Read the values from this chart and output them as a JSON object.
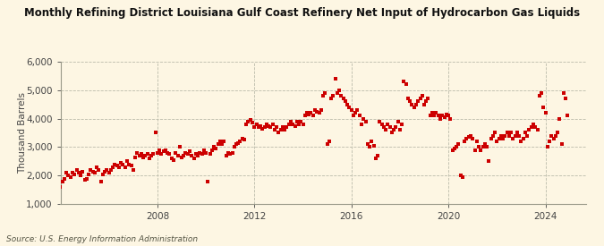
{
  "title": "Monthly Refining District Louisiana Gulf Coast Refinery Net Input of Hydrocarbon Gas Liquids",
  "ylabel": "Thousand Barrels",
  "source": "Source: U.S. Energy Information Administration",
  "background_color": "#fdf6e3",
  "plot_bg_color": "#fdf6e3",
  "dot_color": "#cc0000",
  "dot_size": 9,
  "ylim": [
    1000,
    6000
  ],
  "yticks": [
    1000,
    2000,
    3000,
    4000,
    5000,
    6000
  ],
  "xticks_years": [
    2008,
    2012,
    2016,
    2020,
    2024
  ],
  "data": {
    "2004-01": 1600,
    "2004-02": 1800,
    "2004-03": 1900,
    "2004-04": 2100,
    "2004-05": 2000,
    "2004-06": 1950,
    "2004-07": 2100,
    "2004-08": 2050,
    "2004-09": 2200,
    "2004-10": 2100,
    "2004-11": 2000,
    "2004-12": 2150,
    "2005-01": 1850,
    "2005-02": 1900,
    "2005-03": 2050,
    "2005-04": 2200,
    "2005-05": 2150,
    "2005-06": 2100,
    "2005-07": 2300,
    "2005-08": 2200,
    "2005-09": 1800,
    "2005-10": 2050,
    "2005-11": 2150,
    "2005-12": 2200,
    "2006-01": 2100,
    "2006-02": 2200,
    "2006-03": 2300,
    "2006-04": 2400,
    "2006-05": 2350,
    "2006-06": 2300,
    "2006-07": 2450,
    "2006-08": 2400,
    "2006-09": 2300,
    "2006-10": 2500,
    "2006-11": 2400,
    "2006-12": 2350,
    "2007-01": 2200,
    "2007-02": 2650,
    "2007-03": 2800,
    "2007-04": 2700,
    "2007-05": 2750,
    "2007-06": 2650,
    "2007-07": 2700,
    "2007-08": 2750,
    "2007-09": 2600,
    "2007-10": 2700,
    "2007-11": 2750,
    "2007-12": 3500,
    "2008-01": 2800,
    "2008-02": 2900,
    "2008-03": 2750,
    "2008-04": 2850,
    "2008-05": 2900,
    "2008-06": 2800,
    "2008-07": 2750,
    "2008-08": 2600,
    "2008-09": 2550,
    "2008-10": 2800,
    "2008-11": 2700,
    "2008-12": 3000,
    "2009-01": 2650,
    "2009-02": 2700,
    "2009-03": 2800,
    "2009-04": 2750,
    "2009-05": 2850,
    "2009-06": 2700,
    "2009-07": 2600,
    "2009-08": 2750,
    "2009-09": 2700,
    "2009-10": 2800,
    "2009-11": 2750,
    "2009-12": 2900,
    "2010-01": 2800,
    "2010-02": 1800,
    "2010-03": 2750,
    "2010-04": 2900,
    "2010-05": 3000,
    "2010-06": 2950,
    "2010-07": 3100,
    "2010-08": 3200,
    "2010-09": 3100,
    "2010-10": 3200,
    "2010-11": 2700,
    "2010-12": 2800,
    "2011-01": 2750,
    "2011-02": 2800,
    "2011-03": 3000,
    "2011-04": 3100,
    "2011-05": 3150,
    "2011-06": 3200,
    "2011-07": 3300,
    "2011-08": 3250,
    "2011-09": 3800,
    "2011-10": 3900,
    "2011-11": 3950,
    "2011-12": 3850,
    "2012-01": 3700,
    "2012-02": 3800,
    "2012-03": 3700,
    "2012-04": 3750,
    "2012-05": 3650,
    "2012-06": 3700,
    "2012-07": 3800,
    "2012-08": 3750,
    "2012-09": 3700,
    "2012-10": 3800,
    "2012-11": 3600,
    "2012-12": 3700,
    "2013-01": 3500,
    "2013-02": 3600,
    "2013-03": 3700,
    "2013-04": 3600,
    "2013-05": 3700,
    "2013-06": 3800,
    "2013-07": 3900,
    "2013-08": 3800,
    "2013-09": 3750,
    "2013-10": 3900,
    "2013-11": 3800,
    "2013-12": 3900,
    "2014-01": 3800,
    "2014-02": 4100,
    "2014-03": 4200,
    "2014-04": 4150,
    "2014-05": 4200,
    "2014-06": 4100,
    "2014-07": 4300,
    "2014-08": 4250,
    "2014-09": 4200,
    "2014-10": 4300,
    "2014-11": 4800,
    "2014-12": 4900,
    "2015-01": 3100,
    "2015-02": 3200,
    "2015-03": 4700,
    "2015-04": 4800,
    "2015-05": 5400,
    "2015-06": 4900,
    "2015-07": 5000,
    "2015-08": 4800,
    "2015-09": 4700,
    "2015-10": 4600,
    "2015-11": 4500,
    "2015-12": 4400,
    "2016-01": 4300,
    "2016-02": 4100,
    "2016-03": 4200,
    "2016-04": 4300,
    "2016-05": 4100,
    "2016-06": 3800,
    "2016-07": 4000,
    "2016-08": 3900,
    "2016-09": 3100,
    "2016-10": 3000,
    "2016-11": 3200,
    "2016-12": 3050,
    "2017-01": 2600,
    "2017-02": 2700,
    "2017-03": 3900,
    "2017-04": 3800,
    "2017-05": 3700,
    "2017-06": 3600,
    "2017-07": 3800,
    "2017-08": 3700,
    "2017-09": 3500,
    "2017-10": 3600,
    "2017-11": 3700,
    "2017-12": 3900,
    "2018-01": 3600,
    "2018-02": 3800,
    "2018-03": 5300,
    "2018-04": 5200,
    "2018-05": 4700,
    "2018-06": 4600,
    "2018-07": 4500,
    "2018-08": 4400,
    "2018-09": 4500,
    "2018-10": 4600,
    "2018-11": 4700,
    "2018-12": 4800,
    "2019-01": 4500,
    "2019-02": 4600,
    "2019-03": 4700,
    "2019-04": 4100,
    "2019-05": 4200,
    "2019-06": 4100,
    "2019-07": 4200,
    "2019-08": 4100,
    "2019-09": 4000,
    "2019-10": 4100,
    "2019-11": 4050,
    "2019-12": 4150,
    "2020-01": 4100,
    "2020-02": 4000,
    "2020-03": 2900,
    "2020-04": 2950,
    "2020-05": 3000,
    "2020-06": 3100,
    "2020-07": 2000,
    "2020-08": 1950,
    "2020-09": 3200,
    "2020-10": 3300,
    "2020-11": 3350,
    "2020-12": 3400,
    "2021-01": 3300,
    "2021-02": 2900,
    "2021-03": 3200,
    "2021-04": 3000,
    "2021-05": 2900,
    "2021-06": 3000,
    "2021-07": 3100,
    "2021-08": 3000,
    "2021-09": 2500,
    "2021-10": 3300,
    "2021-11": 3400,
    "2021-12": 3500,
    "2022-01": 3200,
    "2022-02": 3300,
    "2022-03": 3400,
    "2022-04": 3300,
    "2022-05": 3400,
    "2022-06": 3500,
    "2022-07": 3400,
    "2022-08": 3500,
    "2022-09": 3300,
    "2022-10": 3400,
    "2022-11": 3500,
    "2022-12": 3400,
    "2023-01": 3200,
    "2023-02": 3300,
    "2023-03": 3500,
    "2023-04": 3400,
    "2023-05": 3600,
    "2023-06": 3700,
    "2023-07": 3800,
    "2023-08": 3700,
    "2023-09": 3600,
    "2023-10": 4800,
    "2023-11": 4900,
    "2023-12": 4400,
    "2024-01": 4200,
    "2024-02": 3000,
    "2024-03": 3200,
    "2024-04": 3400,
    "2024-05": 3300,
    "2024-06": 3400,
    "2024-07": 3500,
    "2024-08": 4000,
    "2024-09": 3100,
    "2024-10": 4900,
    "2024-11": 4700,
    "2024-12": 4100
  }
}
